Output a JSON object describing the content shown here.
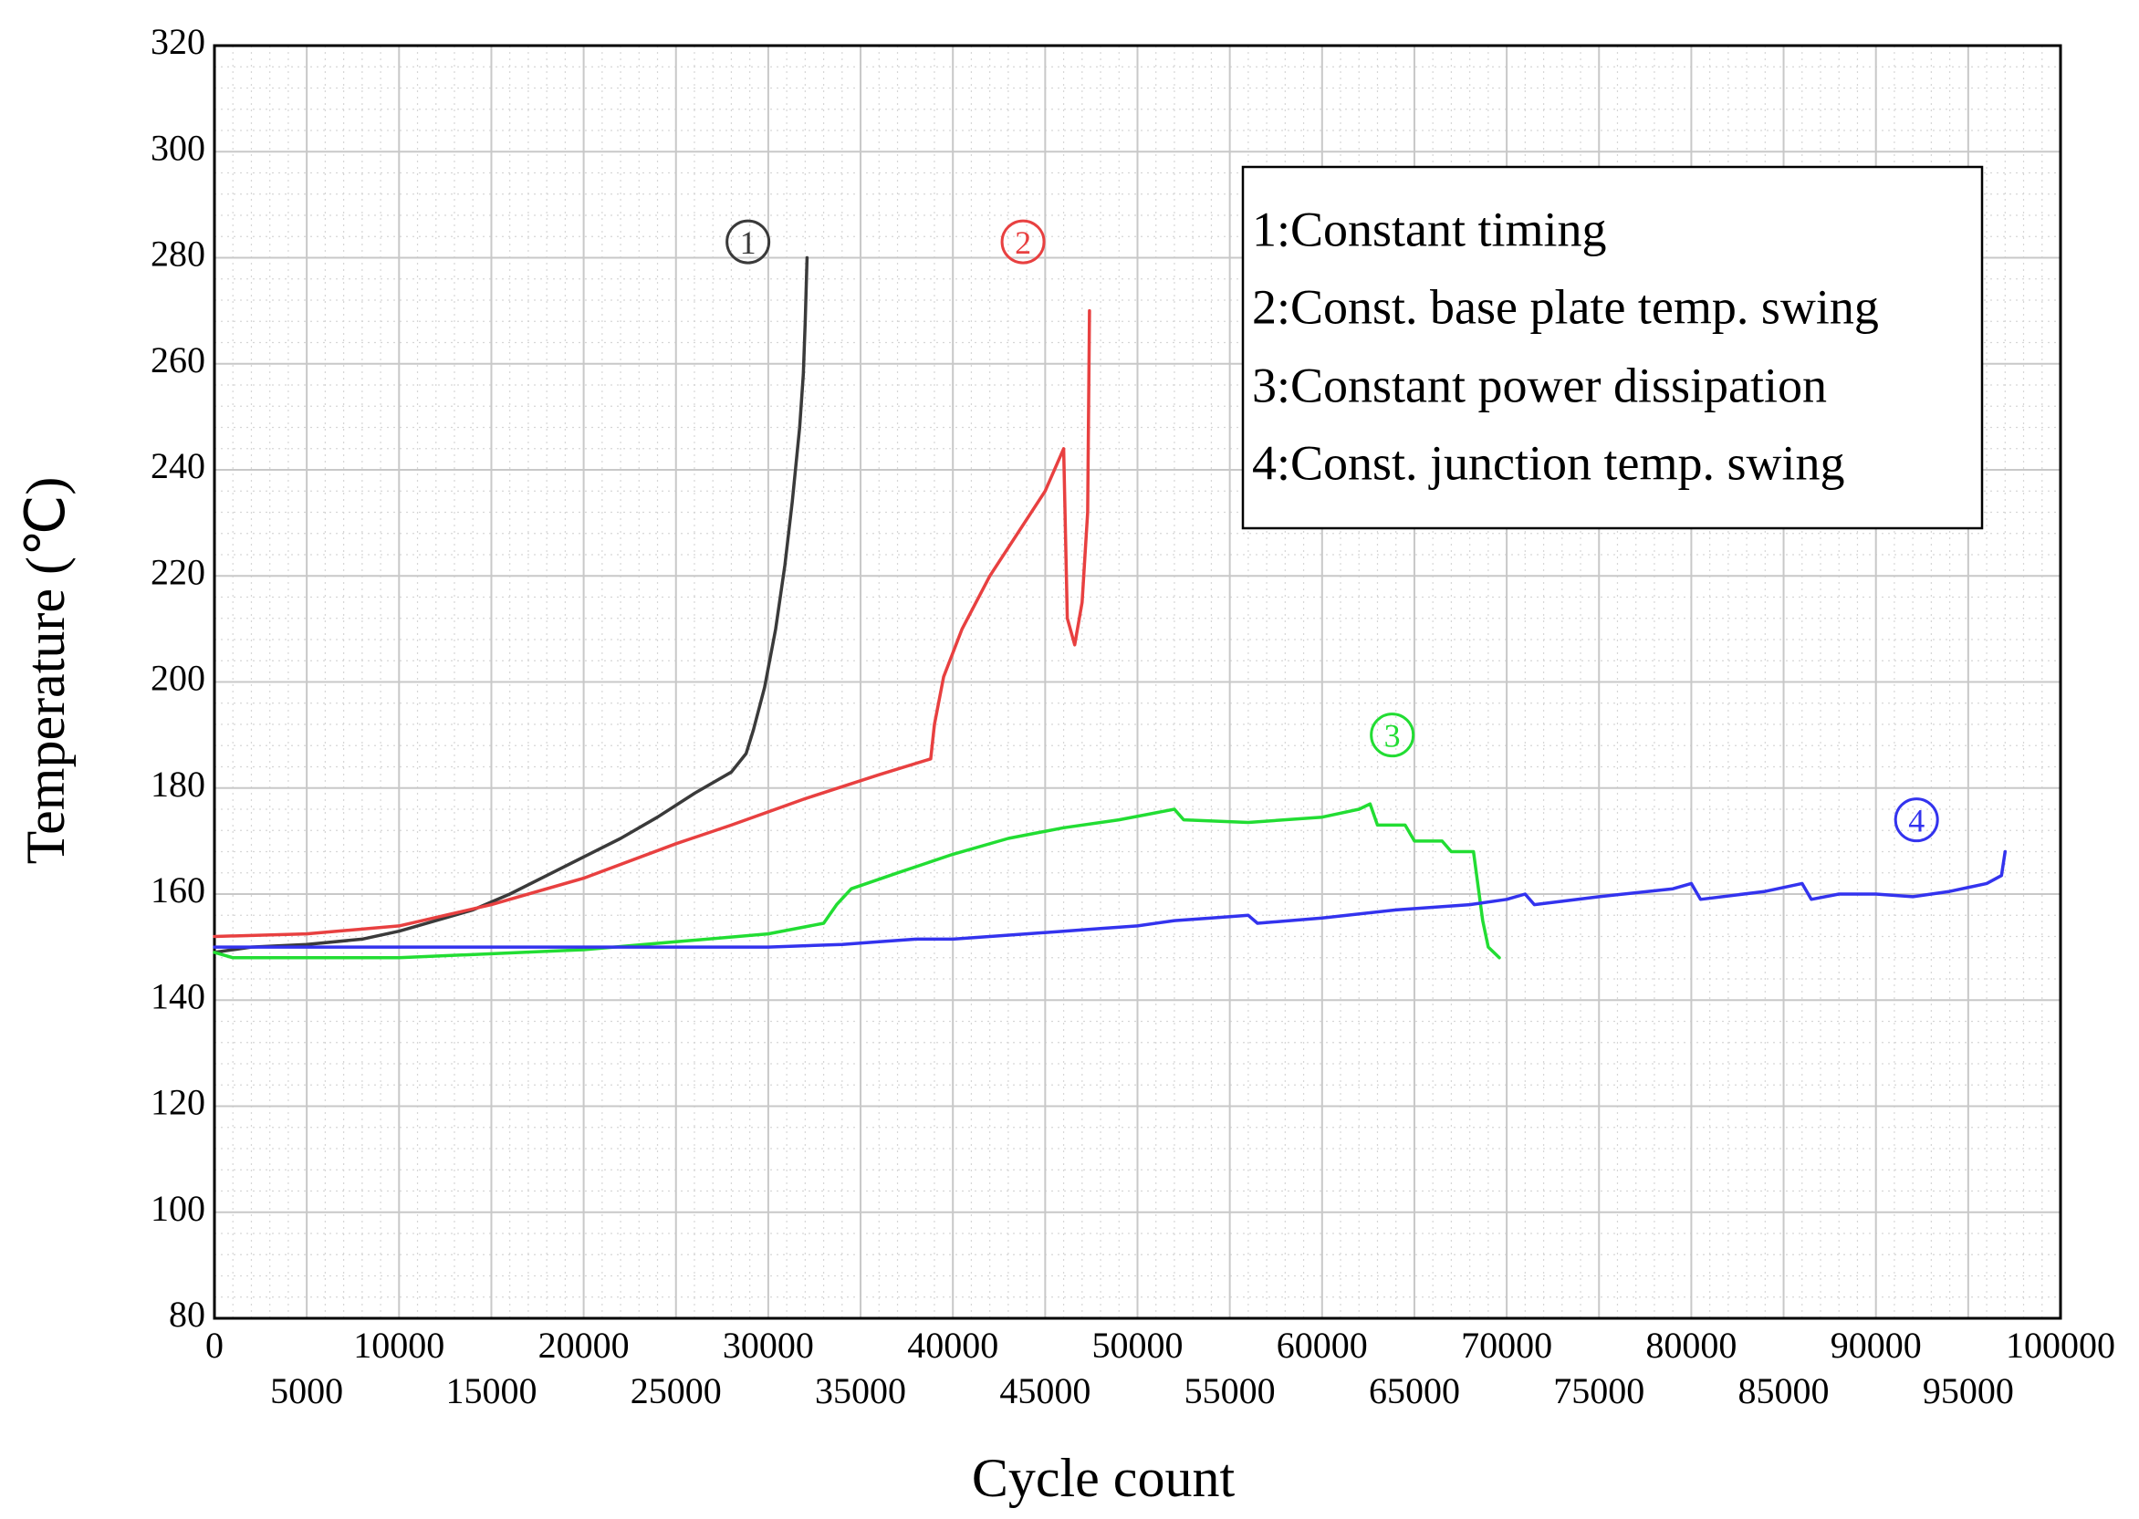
{
  "chart_data": {
    "type": "line",
    "title": "",
    "xlabel": "Cycle count",
    "ylabel": "Temperature (℃)",
    "xlim": [
      0,
      100000
    ],
    "ylim": [
      80,
      320
    ],
    "grid": true,
    "legend_position": "top-right",
    "x_ticks_top_row": [
      "0",
      "10000",
      "20000",
      "30000",
      "40000",
      "50000",
      "60000",
      "70000",
      "80000",
      "90000",
      "100000"
    ],
    "x_ticks_bottom_row": [
      "5000",
      "15000",
      "25000",
      "35000",
      "45000",
      "55000",
      "65000",
      "75000",
      "85000",
      "95000"
    ],
    "y_ticks": [
      "80",
      "100",
      "120",
      "140",
      "160",
      "180",
      "200",
      "220",
      "240",
      "260",
      "280",
      "300",
      "320"
    ],
    "legend": [
      "1:Constant timing",
      "2:Const. base plate temp. swing",
      "3:Constant power dissipation",
      "4:Const. junction temp. swing"
    ],
    "series": [
      {
        "name": "1:Constant timing",
        "marker": "1",
        "color": "#3a3a3a",
        "marker_position": [
          28900,
          283
        ],
        "x": [
          0,
          2000,
          5000,
          8000,
          10000,
          12000,
          14000,
          16000,
          18000,
          20000,
          22000,
          24000,
          26000,
          28000,
          28800,
          29200,
          29800,
          30400,
          30900,
          31300,
          31700,
          31900,
          32000,
          32100
        ],
        "y": [
          149,
          150,
          150.5,
          151.5,
          153,
          155,
          157,
          160,
          163.5,
          167,
          170.5,
          174.5,
          179,
          183,
          186.5,
          191,
          199,
          210,
          222,
          234,
          248,
          258,
          268,
          280
        ]
      },
      {
        "name": "2:Const. base plate temp. swing",
        "color": "#e84040",
        "marker": "2",
        "marker_position": [
          43800,
          283
        ],
        "x": [
          0,
          5000,
          10000,
          15000,
          20000,
          25000,
          28000,
          32000,
          36000,
          38800,
          39000,
          39500,
          40500,
          42000,
          43500,
          45000,
          46000,
          46200,
          46600,
          47000,
          47300,
          47400
        ],
        "y": [
          152,
          152.5,
          154,
          158,
          163,
          169.5,
          173,
          178,
          182.5,
          185.5,
          192,
          201,
          210,
          220,
          228,
          236,
          244,
          212,
          207,
          215,
          232,
          270
        ]
      },
      {
        "name": "3:Constant power dissipation",
        "color": "#22dd33",
        "marker": "3",
        "marker_position": [
          63800,
          190
        ],
        "x": [
          0,
          1000,
          10000,
          20000,
          25000,
          30000,
          33000,
          33700,
          34500,
          37000,
          40000,
          43000,
          46000,
          49000,
          52000,
          52500,
          56000,
          60000,
          62000,
          62600,
          63000,
          64500,
          65000,
          66500,
          67000,
          68200,
          68700,
          69000,
          69600
        ],
        "y": [
          149,
          148,
          148,
          149.5,
          151,
          152.5,
          154.5,
          158,
          161,
          164,
          167.5,
          170.5,
          172.5,
          174,
          176,
          174,
          173.5,
          174.5,
          176,
          177,
          173,
          173,
          170,
          170,
          168,
          168,
          155,
          150,
          148
        ]
      },
      {
        "name": "4:Const. junction temp. swing",
        "color": "#3333ee",
        "marker": "4",
        "marker_position": [
          92200,
          174
        ],
        "x": [
          0,
          10000,
          20000,
          30000,
          34000,
          36000,
          38000,
          40000,
          42000,
          44000,
          46000,
          48000,
          50000,
          52000,
          54000,
          56000,
          56500,
          60000,
          64000,
          68000,
          70000,
          71000,
          71500,
          75000,
          79000,
          80000,
          80500,
          84000,
          86000,
          86500,
          88000,
          90000,
          92000,
          94000,
          96000,
          96800,
          97000
        ],
        "y": [
          150,
          150,
          150,
          150,
          150.5,
          151,
          151.5,
          151.5,
          152,
          152.5,
          153,
          153.5,
          154,
          155,
          155.5,
          156,
          154.5,
          155.5,
          157,
          158,
          159,
          160,
          158,
          159.5,
          161,
          162,
          159,
          160.5,
          162,
          159,
          160,
          160,
          159.5,
          160.5,
          162,
          163.5,
          168
        ]
      }
    ]
  }
}
